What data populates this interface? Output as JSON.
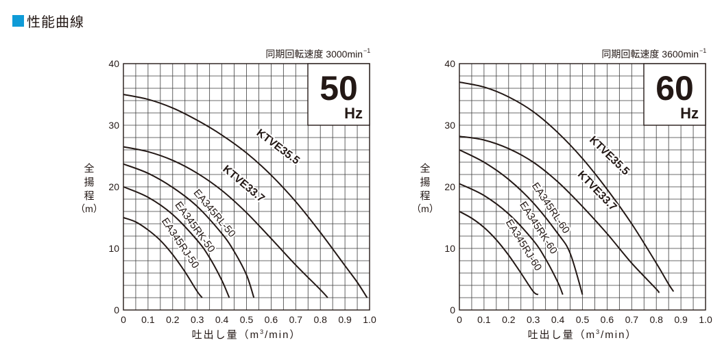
{
  "section_title": "性能曲線",
  "chart_data": [
    {
      "type": "line",
      "speed_label": "同期回転速度 3000min",
      "speed_exponent": "−1",
      "freq_value": "50",
      "freq_unit": "Hz",
      "ylabel_chars": [
        "全",
        "揚",
        "程",
        "（m）"
      ],
      "xlabel": "吐出し量（m",
      "xlabel_exp": "3",
      "xlabel_tail": "/min）",
      "xlim": [
        0,
        1.0
      ],
      "ylim": [
        0,
        40
      ],
      "grid": true,
      "x_ticks": [
        "0",
        "0.1",
        "0.2",
        "0.3",
        "0.4",
        "0.5",
        "0.6",
        "0.7",
        "0.8",
        "0.9",
        "1.0"
      ],
      "y_ticks": [
        "0",
        "10",
        "20",
        "30",
        "40"
      ],
      "series": [
        {
          "name": "KTVE35.5",
          "x": [
            0,
            0.1,
            0.2,
            0.3,
            0.4,
            0.5,
            0.6,
            0.7,
            0.8,
            0.9,
            0.95,
            0.99
          ],
          "y": [
            35,
            34.2,
            32.8,
            30.8,
            28.4,
            25.5,
            21.9,
            17.6,
            12.6,
            7.2,
            4.5,
            2.0
          ]
        },
        {
          "name": "KTVE33.7",
          "x": [
            0,
            0.1,
            0.2,
            0.3,
            0.4,
            0.5,
            0.6,
            0.7,
            0.8,
            0.83
          ],
          "y": [
            26.5,
            25.7,
            24.3,
            22.2,
            19.4,
            15.8,
            11.6,
            7.3,
            3.3,
            2.0
          ]
        },
        {
          "name": "EA345RL-50",
          "x": [
            0,
            0.1,
            0.2,
            0.3,
            0.4,
            0.45,
            0.5,
            0.53
          ],
          "y": [
            23.7,
            22.2,
            19.9,
            16.8,
            12.4,
            9.5,
            5.7,
            2.0
          ]
        },
        {
          "name": "EA345RK-50",
          "x": [
            0,
            0.1,
            0.2,
            0.3,
            0.35,
            0.4,
            0.43
          ],
          "y": [
            20,
            18.3,
            15.5,
            11.3,
            8.5,
            4.8,
            2.0
          ]
        },
        {
          "name": "EA345RJ-50",
          "x": [
            0,
            0.05,
            0.1,
            0.15,
            0.2,
            0.25,
            0.3,
            0.32
          ],
          "y": [
            15,
            14.3,
            13.0,
            11.3,
            9.0,
            6.2,
            3.0,
            2.0
          ]
        }
      ]
    },
    {
      "type": "line",
      "speed_label": "同期回転速度 3600min",
      "speed_exponent": "−1",
      "freq_value": "60",
      "freq_unit": "Hz",
      "ylabel_chars": [
        "全",
        "揚",
        "程",
        "（m）"
      ],
      "xlabel": "吐出し量（m",
      "xlabel_exp": "3",
      "xlabel_tail": "/min）",
      "xlim": [
        0,
        1.0
      ],
      "ylim": [
        0,
        40
      ],
      "grid": true,
      "x_ticks": [
        "0",
        "0.1",
        "0.2",
        "0.3",
        "0.4",
        "0.5",
        "0.6",
        "0.7",
        "0.8",
        "0.9",
        "1.0"
      ],
      "y_ticks": [
        "0",
        "10",
        "20",
        "30",
        "40"
      ],
      "series": [
        {
          "name": "KTVE35.5",
          "x": [
            0,
            0.1,
            0.2,
            0.3,
            0.4,
            0.5,
            0.6,
            0.7,
            0.8,
            0.85,
            0.87
          ],
          "y": [
            37,
            36.2,
            34.6,
            32.2,
            28.8,
            24.6,
            19.6,
            14.0,
            7.6,
            4.2,
            3.0
          ]
        },
        {
          "name": "KTVE33.7",
          "x": [
            0,
            0.1,
            0.2,
            0.3,
            0.4,
            0.5,
            0.6,
            0.7,
            0.8,
            0.81
          ],
          "y": [
            28.2,
            27.6,
            26.2,
            24.0,
            20.8,
            16.8,
            12.4,
            7.6,
            3.4,
            2.8
          ]
        },
        {
          "name": "EA345RL-60",
          "x": [
            0,
            0.1,
            0.2,
            0.3,
            0.4,
            0.45,
            0.5
          ],
          "y": [
            26,
            24.0,
            21.2,
            17.4,
            12.4,
            9.2,
            2.5
          ]
        },
        {
          "name": "EA345RK-60",
          "x": [
            0,
            0.1,
            0.2,
            0.3,
            0.35,
            0.4,
            0.42
          ],
          "y": [
            20.5,
            18.6,
            15.6,
            11.3,
            8.3,
            4.5,
            2.5
          ]
        },
        {
          "name": "EA345RJ-60",
          "x": [
            0,
            0.05,
            0.1,
            0.15,
            0.2,
            0.25,
            0.3,
            0.32
          ],
          "y": [
            16,
            14.9,
            13.4,
            11.4,
            8.9,
            6.0,
            3.0,
            2.5
          ]
        }
      ]
    }
  ]
}
